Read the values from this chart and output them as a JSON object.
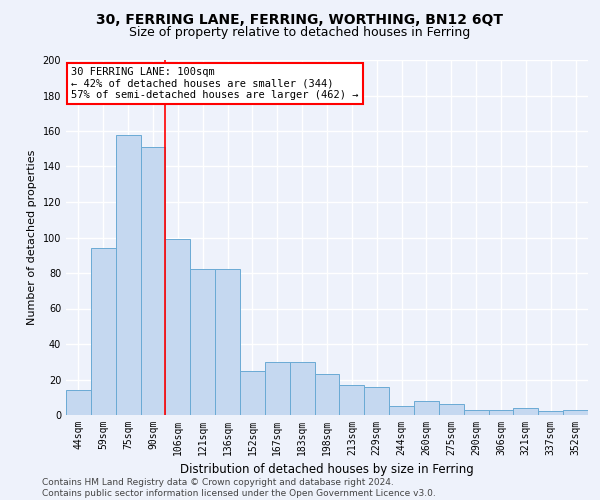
{
  "title": "30, FERRING LANE, FERRING, WORTHING, BN12 6QT",
  "subtitle": "Size of property relative to detached houses in Ferring",
  "xlabel": "Distribution of detached houses by size in Ferring",
  "ylabel": "Number of detached properties",
  "categories": [
    "44sqm",
    "59sqm",
    "75sqm",
    "90sqm",
    "106sqm",
    "121sqm",
    "136sqm",
    "152sqm",
    "167sqm",
    "183sqm",
    "198sqm",
    "213sqm",
    "229sqm",
    "244sqm",
    "260sqm",
    "275sqm",
    "290sqm",
    "306sqm",
    "321sqm",
    "337sqm",
    "352sqm"
  ],
  "values": [
    14,
    94,
    158,
    151,
    99,
    82,
    82,
    25,
    30,
    30,
    23,
    17,
    16,
    5,
    8,
    6,
    3,
    3,
    4,
    2,
    3
  ],
  "bar_color": "#c5d8f0",
  "bar_edge_color": "#6aaad4",
  "vline_x": 3.5,
  "vline_color": "red",
  "annotation_title": "30 FERRING LANE: 100sqm",
  "annotation_line1": "← 42% of detached houses are smaller (344)",
  "annotation_line2": "57% of semi-detached houses are larger (462) →",
  "annotation_box_facecolor": "#ffffff",
  "annotation_box_edgecolor": "red",
  "ylim": [
    0,
    200
  ],
  "yticks": [
    0,
    20,
    40,
    60,
    80,
    100,
    120,
    140,
    160,
    180,
    200
  ],
  "background_color": "#eef2fb",
  "grid_color": "#ffffff",
  "footer_line1": "Contains HM Land Registry data © Crown copyright and database right 2024.",
  "footer_line2": "Contains public sector information licensed under the Open Government Licence v3.0.",
  "title_fontsize": 10,
  "subtitle_fontsize": 9,
  "xlabel_fontsize": 8.5,
  "ylabel_fontsize": 8,
  "tick_fontsize": 7,
  "annotation_fontsize": 7.5,
  "footer_fontsize": 6.5
}
